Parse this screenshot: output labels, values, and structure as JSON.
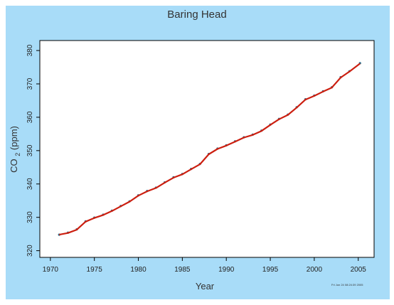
{
  "chart_data": {
    "type": "scatter",
    "title": "Baring Head",
    "xlabel": "Year",
    "ylabel": "CO2 (ppm)",
    "ylabel_main": "CO",
    "ylabel_sub": "2",
    "ylabel_unit": " (ppm)",
    "xlim": [
      1968.8,
      2006.8
    ],
    "ylim": [
      318,
      383
    ],
    "xticks": [
      1970,
      1975,
      1980,
      1985,
      1990,
      1995,
      2000,
      2005
    ],
    "yticks": [
      320,
      330,
      340,
      350,
      360,
      370,
      380
    ],
    "grid": false,
    "series": [
      {
        "color": "#2c6e8a",
        "role": "observations",
        "x": [
          1971.0,
          1972.0,
          1973.0,
          1974.0,
          1975.0,
          1976.0,
          1977.0,
          1978.0,
          1979.0,
          1980.0,
          1981.0,
          1982.0,
          1983.0,
          1984.0,
          1985.0,
          1986.0,
          1987.0,
          1988.0,
          1989.0,
          1990.0,
          1991.0,
          1992.0,
          1993.0,
          1994.0,
          1995.0,
          1996.0,
          1997.0,
          1998.0,
          1999.0,
          2000.0,
          2001.0,
          2002.0,
          2003.0,
          2004.0,
          2005.2
        ],
        "y": [
          324.8,
          325.4,
          326.4,
          328.8,
          329.9,
          330.8,
          332.0,
          333.4,
          334.8,
          336.6,
          337.9,
          338.9,
          340.5,
          342.0,
          343.0,
          344.5,
          346.0,
          349.0,
          350.6,
          351.6,
          352.8,
          354.0,
          354.8,
          356.0,
          357.8,
          359.5,
          360.8,
          363.0,
          365.4,
          366.5,
          367.8,
          369.0,
          372.0,
          373.8,
          376.2
        ]
      },
      {
        "color": "#cc1f10",
        "role": "smoothed fit",
        "x": [
          1971.0,
          1972.0,
          1973.0,
          1974.0,
          1975.0,
          1976.0,
          1977.0,
          1978.0,
          1979.0,
          1980.0,
          1981.0,
          1982.0,
          1983.0,
          1984.0,
          1985.0,
          1986.0,
          1987.0,
          1988.0,
          1989.0,
          1990.0,
          1991.0,
          1992.0,
          1993.0,
          1994.0,
          1995.0,
          1996.0,
          1997.0,
          1998.0,
          1999.0,
          2000.0,
          2001.0,
          2002.0,
          2003.0,
          2004.0,
          2005.2
        ],
        "y": [
          324.8,
          325.3,
          326.3,
          328.7,
          329.8,
          330.7,
          331.9,
          333.3,
          334.7,
          336.5,
          337.8,
          338.8,
          340.4,
          341.9,
          342.9,
          344.4,
          345.9,
          348.9,
          350.5,
          351.5,
          352.7,
          353.9,
          354.7,
          355.9,
          357.7,
          359.4,
          360.7,
          362.9,
          365.3,
          366.4,
          367.7,
          368.9,
          371.9,
          373.7,
          376.1
        ]
      }
    ],
    "footnote": "Fri Jun 24 08:24:39 2005"
  }
}
